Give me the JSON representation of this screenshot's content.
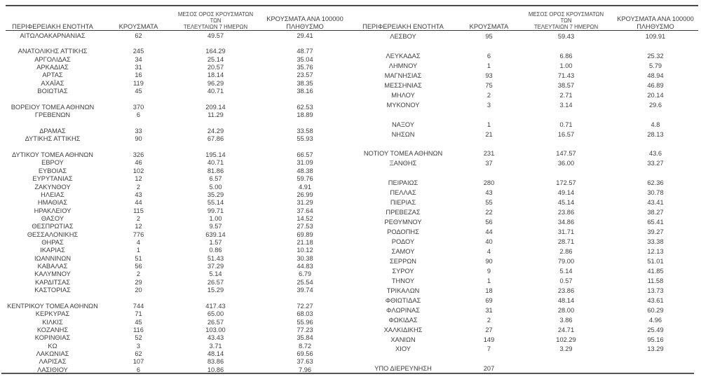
{
  "document": {
    "type": "regional-covid-cases-statistics-table",
    "background_color": "#ffffff",
    "text_color": "#3d3d3d",
    "rule_color": "#4a4a4a"
  },
  "headers": {
    "region": "ΠΕΡΙΦΕΡΕΙΑΚΗ ΕΝΟΤΗΤΑ",
    "cases": "ΚΡΟΥΣΜΑΤΑ",
    "avg_7day_line1": "ΜΕΣΟΣ ΟΡΟΣ ΚΡΟΥΣΜΑΤΩΝ ΤΩΝ",
    "avg_7day_line2": "ΤΕΛΕΥΤΑΙΩΝ 7 ΗΜΕΡΩΝ",
    "per_100k_line1": "ΚΡΟΥΣΜΑΤΑ ΑΝΑ 100000",
    "per_100k_line2": "ΠΛΗΘΥΣΜΟ"
  },
  "left_table": {
    "rows": [
      [
        "ΑΙΤΩΛΟΑΚΑΡΝΑΝΙΑΣ",
        "62",
        "49.57",
        "29.41"
      ],
      [
        "",
        "",
        "",
        ""
      ],
      [
        "ΑΝΑΤΟΛΙΚΗΣ ΑΤΤΙΚΗΣ",
        "245",
        "164.29",
        "48.77"
      ],
      [
        "ΑΡΓΟΛΙΔΑΣ",
        "34",
        "25.14",
        "35.04"
      ],
      [
        "ΑΡΚΑΔΙΑΣ",
        "31",
        "20.57",
        "35.76"
      ],
      [
        "ΑΡΤΑΣ",
        "16",
        "18.14",
        "23.57"
      ],
      [
        "ΑΧΑΪΑΣ",
        "119",
        "96.29",
        "38.35"
      ],
      [
        "ΒΟΙΩΤΙΑΣ",
        "45",
        "40.71",
        "38.16"
      ],
      [
        "",
        "",
        "",
        ""
      ],
      [
        "ΒΟΡΕΙΟΥ ΤΟΜΕΑ ΑΘΗΝΩΝ",
        "370",
        "209.14",
        "62.53"
      ],
      [
        "ΓΡΕΒΕΝΩΝ",
        "6",
        "11.29",
        "18.89"
      ],
      [
        "",
        "",
        "",
        ""
      ],
      [
        "ΔΡΑΜΑΣ",
        "33",
        "24.29",
        "33.58"
      ],
      [
        "ΔΥΤΙΚΗΣ ΑΤΤΙΚΗΣ",
        "90",
        "67.86",
        "55.93"
      ],
      [
        "",
        "",
        "",
        ""
      ],
      [
        "ΔΥΤΙΚΟΥ ΤΟΜΕΑ ΑΘΗΝΩΝ",
        "326",
        "195.14",
        "66.57"
      ],
      [
        "ΕΒΡΟΥ",
        "46",
        "40.71",
        "31.09"
      ],
      [
        "ΕΥΒΟΙΑΣ",
        "102",
        "81.86",
        "48.38"
      ],
      [
        "ΕΥΡΥΤΑΝΙΑΣ",
        "12",
        "6.57",
        "59.76"
      ],
      [
        "ΖΑΚΥΝΘΟΥ",
        "2",
        "5.00",
        "4.91"
      ],
      [
        "ΗΛΕΙΑΣ",
        "43",
        "35.29",
        "26.99"
      ],
      [
        "ΗΜΑΘΙΑΣ",
        "44",
        "55.14",
        "31.29"
      ],
      [
        "ΗΡΑΚΛΕΙΟΥ",
        "115",
        "99.71",
        "37.64"
      ],
      [
        "ΘΑΣΟΥ",
        "2",
        "1.00",
        "14.52"
      ],
      [
        "ΘΕΣΠΡΩΤΙΑΣ",
        "12",
        "9.57",
        "27.53"
      ],
      [
        "ΘΕΣΣΑΛΟΝΙΚΗΣ",
        "776",
        "639.14",
        "69.89"
      ],
      [
        "ΘΗΡΑΣ",
        "4",
        "1.57",
        "21.18"
      ],
      [
        "ΙΚΑΡΙΑΣ",
        "1",
        "0.86",
        "10.12"
      ],
      [
        "ΙΩΑΝΝΙΝΩΝ",
        "51",
        "51.43",
        "30.38"
      ],
      [
        "ΚΑΒΑΛΑΣ",
        "56",
        "37.29",
        "44.83"
      ],
      [
        "ΚΑΛΥΜΝΟΥ",
        "2",
        "5.14",
        "6.79"
      ],
      [
        "ΚΑΡΔΙΤΣΑΣ",
        "29",
        "26.57",
        "25.54"
      ],
      [
        "ΚΑΣΤΟΡΙΑΣ",
        "20",
        "15.29",
        "39.74"
      ],
      [
        "",
        "",
        "",
        ""
      ],
      [
        "ΚΕΝΤΡΙΚΟΥ ΤΟΜΕΑ ΑΘΗΝΩΝ",
        "744",
        "417.43",
        "72.27"
      ],
      [
        "ΚΕΡΚΥΡΑΣ",
        "71",
        "65.00",
        "68.03"
      ],
      [
        "ΚΙΛΚΙΣ",
        "45",
        "26.57",
        "55.96"
      ],
      [
        "ΚΟΖΑΝΗΣ",
        "116",
        "103.00",
        "77.23"
      ],
      [
        "ΚΟΡΙΝΘΙΑΣ",
        "52",
        "43.43",
        "35.84"
      ],
      [
        "ΚΩ",
        "3",
        "3.71",
        "8.72"
      ],
      [
        "ΛΑΚΩΝΙΑΣ",
        "62",
        "48.14",
        "69.56"
      ],
      [
        "ΛΑΡΙΣΑΣ",
        "107",
        "83.86",
        "37.63"
      ],
      [
        "ΛΑΣΙΘΙΟΥ",
        "6",
        "10.86",
        "7.96"
      ]
    ]
  },
  "right_table": {
    "rows": [
      [
        "ΛΕΣΒΟΥ",
        "95",
        "59.43",
        "109.91"
      ],
      [
        "",
        "",
        "",
        ""
      ],
      [
        "ΛΕΥΚΑΔΑΣ",
        "6",
        "6.86",
        "25.32"
      ],
      [
        "ΛΗΜΝΟΥ",
        "1",
        "1.00",
        "5.79"
      ],
      [
        "ΜΑΓΝΗΣΙΑΣ",
        "93",
        "71.43",
        "48.94"
      ],
      [
        "ΜΕΣΣΗΝΙΑΣ",
        "75",
        "38.57",
        "46.89"
      ],
      [
        "ΜΗΛΟΥ",
        "2",
        "2.71",
        "20.14"
      ],
      [
        "ΜΥΚΟΝΟΥ",
        "3",
        "3.14",
        "29.6"
      ],
      [
        "",
        "",
        "",
        ""
      ],
      [
        "ΝΑΞΟΥ",
        "1",
        "0.71",
        "4.8"
      ],
      [
        "ΝΗΣΩΝ",
        "21",
        "16.57",
        "28.13"
      ],
      [
        "",
        "",
        "",
        ""
      ],
      [
        "ΝΟΤΙΟΥ ΤΟΜΕΑ ΑΘΗΝΩΝ",
        "231",
        "147.57",
        "43.6"
      ],
      [
        "ΞΑΝΘΗΣ",
        "37",
        "36.00",
        "33.27"
      ],
      [
        "",
        "",
        "",
        ""
      ],
      [
        "ΠΕΙΡΑΙΩΣ",
        "280",
        "172.57",
        "62.36"
      ],
      [
        "ΠΕΛΛΑΣ",
        "43",
        "49.14",
        "30.78"
      ],
      [
        "ΠΙΕΡΙΑΣ",
        "55",
        "45.14",
        "43.41"
      ],
      [
        "ΠΡΕΒΕΖΑΣ",
        "22",
        "23.86",
        "38.27"
      ],
      [
        "ΡΕΘΥΜΝΟΥ",
        "56",
        "34.86",
        "65.41"
      ],
      [
        "ΡΟΔΟΠΗΣ",
        "44",
        "31.71",
        "39.27"
      ],
      [
        "ΡΟΔΟΥ",
        "40",
        "28.71",
        "33.38"
      ],
      [
        "ΣΑΜΟΥ",
        "4",
        "2.86",
        "12.13"
      ],
      [
        "ΣΕΡΡΩΝ",
        "90",
        "79.00",
        "51.01"
      ],
      [
        "ΣΥΡΟΥ",
        "9",
        "5.14",
        "41.85"
      ],
      [
        "ΤΗΝΟΥ",
        "1",
        "0.57",
        "11.58"
      ],
      [
        "ΤΡΙΚΑΛΩΝ",
        "18",
        "23.86",
        "13.73"
      ],
      [
        "ΦΘΙΩΤΙΔΑΣ",
        "69",
        "48.14",
        "43.61"
      ],
      [
        "ΦΛΩΡΙΝΑΣ",
        "31",
        "28.00",
        "60.29"
      ],
      [
        "ΦΩΚΙΔΑΣ",
        "2",
        "3.86",
        "4.96"
      ],
      [
        "ΧΑΛΚΙΔΙΚΗΣ",
        "27",
        "24.71",
        "25.49"
      ],
      [
        "ΧΑΝΙΩΝ",
        "149",
        "102.29",
        "95.16"
      ],
      [
        "ΧΙΟΥ",
        "7",
        "3.29",
        "13.29"
      ],
      [
        "",
        "",
        "",
        ""
      ],
      [
        "ΥΠΟ ΔΙΕΡΕΥΝΗΣΗ",
        "207",
        "",
        ""
      ]
    ]
  }
}
